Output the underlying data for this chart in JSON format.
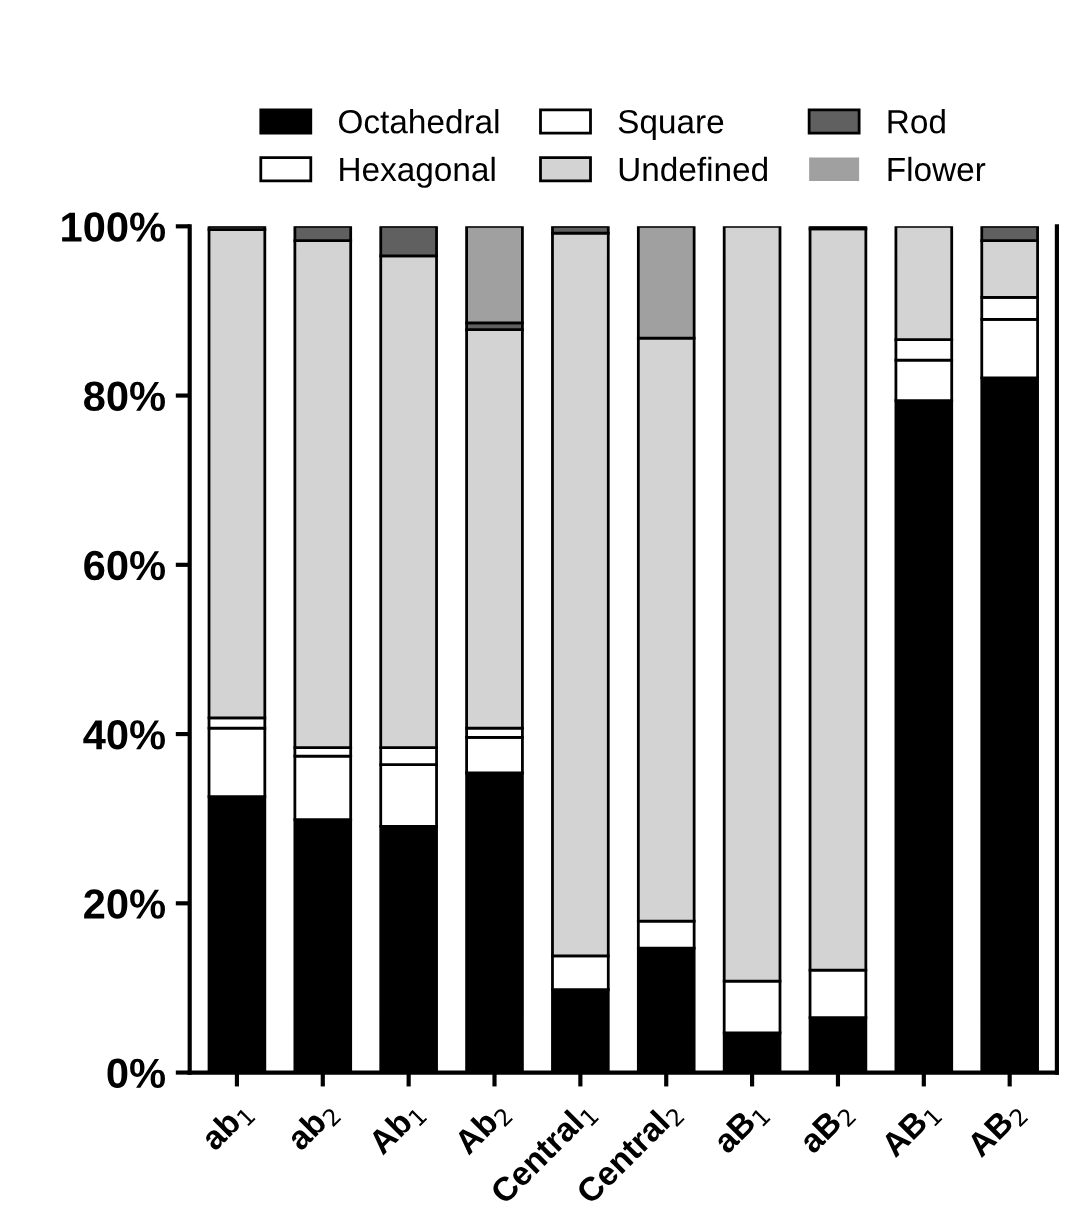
{
  "chart_data": {
    "type": "bar",
    "stacked": true,
    "legend": "top",
    "categories": [
      "ab$_{1}$",
      "ab$_{2}$",
      "Ab$_{1}$",
      "Ab$_{2}$",
      "Central$_{1}$",
      "Central$_{2}$",
      "aB$_{1}$",
      "aB$_{2}$",
      "AB$_{1}$",
      "AB$_{2}$"
    ],
    "ylim": [
      0,
      100
    ],
    "yticks": [
      {
        "value": 0,
        "label": "0%"
      },
      {
        "value": 20,
        "label": "20%"
      },
      {
        "value": 40,
        "label": "40%"
      },
      {
        "value": 60,
        "label": "60%"
      },
      {
        "value": 80,
        "label": "80%"
      },
      {
        "value": 100,
        "label": "100%"
      }
    ],
    "grid": false,
    "series": [
      {
        "name": "Octahedral",
        "color": "#000000",
        "values": [
          32.6,
          29.9,
          29.1,
          35.4,
          9.8,
          14.7,
          4.7,
          6.5,
          79.4,
          82.1
        ]
      },
      {
        "name": "Hexagonal",
        "color": "#ffffff",
        "values": [
          8.1,
          7.5,
          7.3,
          4.2,
          4.0,
          3.2,
          6.1,
          5.6,
          4.8,
          6.9
        ]
      },
      {
        "name": "Square",
        "color": "#ffffff",
        "values": [
          1.2,
          1.0,
          2.0,
          1.1,
          0,
          0,
          0,
          0,
          2.4,
          2.6
        ]
      },
      {
        "name": "Undefined",
        "color": "#d3d3d3",
        "values": [
          57.7,
          59.9,
          58.1,
          47.1,
          85.4,
          68.9,
          89.2,
          87.6,
          13.4,
          6.7
        ]
      },
      {
        "name": "Rod",
        "color": "#606060",
        "values": [
          0.4,
          1.7,
          3.5,
          0.8,
          0.8,
          0,
          0,
          0.3,
          0,
          1.7
        ]
      },
      {
        "name": "Flower",
        "color": "#a0a0a0",
        "values": [
          0,
          0,
          0,
          11.4,
          0,
          13.2,
          0,
          0,
          0,
          0
        ]
      }
    ]
  }
}
